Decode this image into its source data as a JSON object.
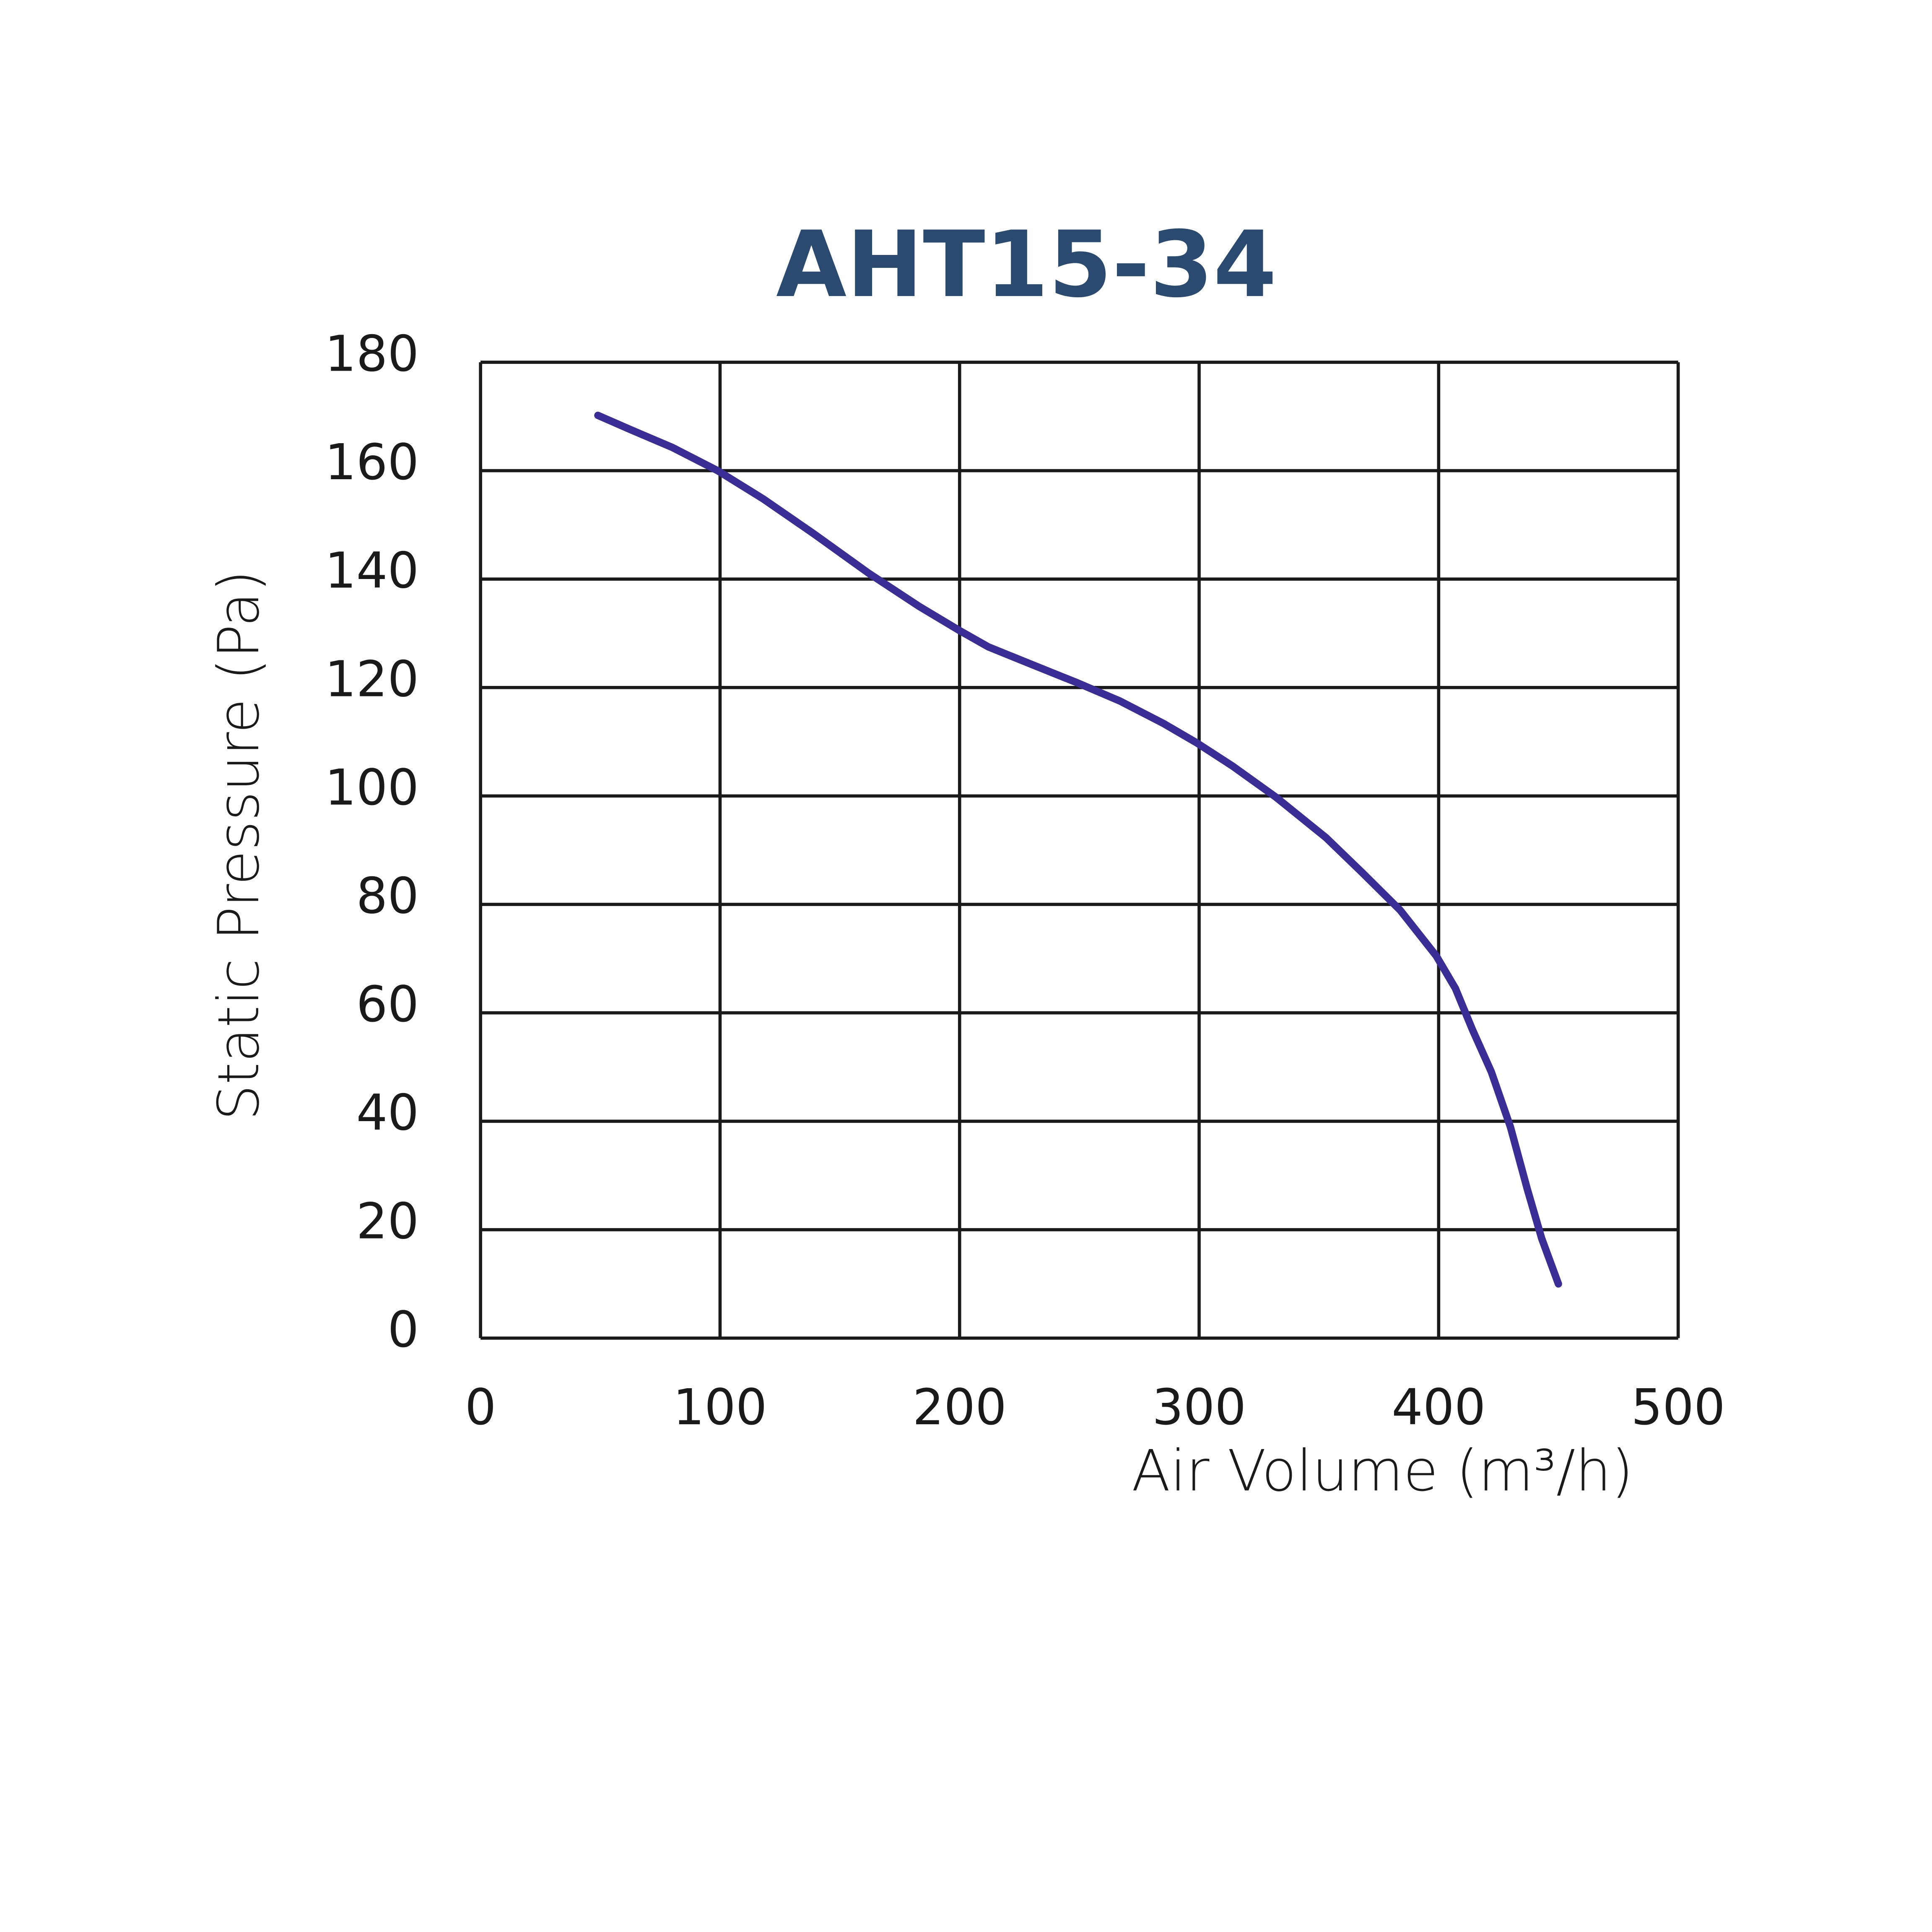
{
  "chart_data": {
    "type": "line",
    "title": "AHT15-34",
    "x_label": "Air Volume (m³/h)",
    "y_label": "Static Pressure (Pa)",
    "series": [
      {
        "name": "AHT15-34",
        "color": "#3a2d96",
        "x": [
          49,
          63,
          80,
          99,
          118,
          139,
          162,
          183,
          200,
          212,
          231,
          249,
          267,
          285,
          299,
          314,
          332,
          353,
          368,
          384,
          399,
          407,
          414,
          422,
          430,
          437,
          443,
          450
        ],
        "values": [
          170.2,
          167.5,
          164.3,
          160,
          154.8,
          148.4,
          141.1,
          135,
          130.5,
          127.5,
          124.1,
          120.9,
          117.5,
          113.4,
          109.8,
          105.5,
          99.8,
          92.3,
          85.9,
          78.9,
          70.5,
          64.5,
          57,
          49.1,
          38.9,
          27.5,
          18.4,
          10
        ]
      }
    ],
    "xlim": [
      0,
      500
    ],
    "xticks": [
      0,
      100,
      200,
      300,
      400,
      500
    ],
    "ylim": [
      0,
      180
    ],
    "yticks": [
      0,
      20,
      40,
      60,
      80,
      100,
      120,
      140,
      160,
      180
    ],
    "grid": true
  }
}
